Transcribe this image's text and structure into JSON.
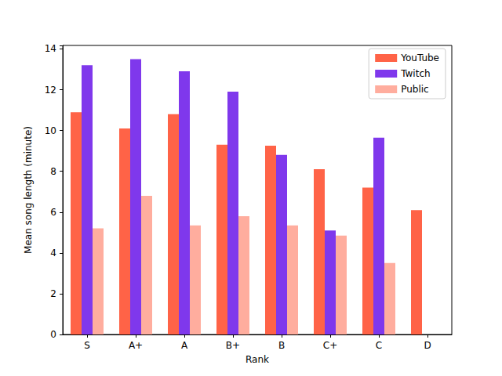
{
  "chart_data": {
    "type": "bar",
    "x_label": "Rank",
    "y_label": "Mean song length (minute)",
    "categories": [
      "S",
      "A+",
      "A",
      "B+",
      "B",
      "C+",
      "C",
      "D"
    ],
    "series": [
      {
        "name": "YouTube",
        "color": "#ff6347",
        "values": [
          10.9,
          10.1,
          10.8,
          9.3,
          9.25,
          8.1,
          7.2,
          6.1
        ]
      },
      {
        "name": "Twitch",
        "color": "#7f38ec",
        "values": [
          13.2,
          13.5,
          12.9,
          11.9,
          8.8,
          5.1,
          9.65,
          null
        ]
      },
      {
        "name": "Public",
        "color": "#ffad9e",
        "values": [
          5.2,
          6.8,
          5.35,
          5.8,
          5.35,
          4.85,
          3.5,
          null
        ]
      }
    ],
    "ylim": [
      0,
      14.17
    ],
    "yticks": [
      0,
      2,
      4,
      6,
      8,
      10,
      12,
      14
    ],
    "legend": "upper right",
    "grid": false
  }
}
